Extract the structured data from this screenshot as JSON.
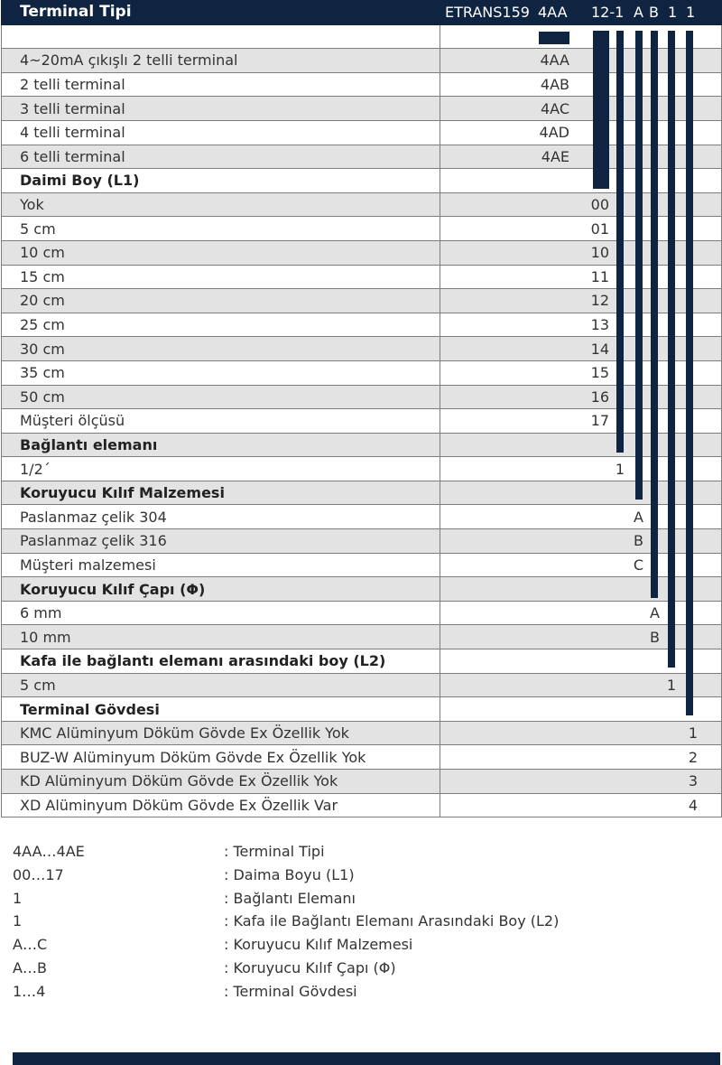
{
  "header": {
    "title": "Terminal Tipi",
    "model": "ETRANS159",
    "codes": [
      "4AA",
      "12-1",
      "A",
      "B",
      "1",
      "1"
    ]
  },
  "rows": [
    {
      "label": "",
      "value": "",
      "kind": "blank"
    },
    {
      "label": "4~20mA çıkışlı 2 telli terminal",
      "value": "4AA",
      "kind": "item"
    },
    {
      "label": "2 telli terminal",
      "value": "4AB",
      "kind": "item"
    },
    {
      "label": "3 telli terminal",
      "value": "4AC",
      "kind": "item"
    },
    {
      "label": "4 telli terminal",
      "value": "4AD",
      "kind": "item"
    },
    {
      "label": "6 telli terminal",
      "value": "4AE",
      "kind": "item"
    },
    {
      "label": "Daimi Boy (L1)",
      "value": "",
      "kind": "section"
    },
    {
      "label": "Yok",
      "value": "00",
      "kind": "item"
    },
    {
      "label": "5 cm",
      "value": "01",
      "kind": "item"
    },
    {
      "label": "10 cm",
      "value": "10",
      "kind": "item"
    },
    {
      "label": "15 cm",
      "value": "11",
      "kind": "item"
    },
    {
      "label": "20 cm",
      "value": "12",
      "kind": "item"
    },
    {
      "label": "25 cm",
      "value": "13",
      "kind": "item"
    },
    {
      "label": "30 cm",
      "value": "14",
      "kind": "item"
    },
    {
      "label": "35 cm",
      "value": "15",
      "kind": "item"
    },
    {
      "label": "50 cm",
      "value": "16",
      "kind": "item"
    },
    {
      "label": "Müşteri ölçüsü",
      "value": "17",
      "kind": "item"
    },
    {
      "label": "Bağlantı  elemanı",
      "value": "",
      "kind": "section"
    },
    {
      "label": "1/2´",
      "value": "1",
      "kind": "item"
    },
    {
      "label": "Koruyucu  Kılıf  Malzemesi",
      "value": "",
      "kind": "section"
    },
    {
      "label": "Paslanmaz çelik 304",
      "value": "A",
      "kind": "item"
    },
    {
      "label": "Paslanmaz çelik 316",
      "value": "B",
      "kind": "item"
    },
    {
      "label": "Müşteri malzemesi",
      "value": "C",
      "kind": "item"
    },
    {
      "label": "Koruyucu  Kılıf  Çapı  (Φ)",
      "value": "",
      "kind": "section"
    },
    {
      "label": "6 mm",
      "value": "A",
      "kind": "item"
    },
    {
      "label": "10 mm",
      "value": "B",
      "kind": "item"
    },
    {
      "label": "Kafa ile bağlantı elemanı arasındaki  boy (L2)",
      "value": "",
      "kind": "section"
    },
    {
      "label": "5 cm",
      "value": "1",
      "kind": "item"
    },
    {
      "label": "Terminal  Gövdesi",
      "value": "",
      "kind": "section"
    },
    {
      "label": "KMC  Alüminyum Döküm Gövde Ex Özellik Yok",
      "value": "1",
      "kind": "item"
    },
    {
      "label": "BUZ-W  Alüminyum Döküm Gövde Ex Özellik Yok",
      "value": "2",
      "kind": "item"
    },
    {
      "label": "KD  Alüminyum Döküm Gövde Ex Özellik Yok",
      "value": "3",
      "kind": "item"
    },
    {
      "label": "XD  Alüminyum Döküm Gövde Ex Özellik Var",
      "value": "4",
      "kind": "item"
    }
  ],
  "legend": [
    {
      "code": "4AA…4AE",
      "desc": ": Terminal Tipi"
    },
    {
      "code": "00…17",
      "desc": ": Daima Boyu (L1)"
    },
    {
      "code": "1",
      "desc": ": Bağlantı Elemanı"
    },
    {
      "code": "1",
      "desc": ": Kafa ile Bağlantı Elemanı Arasındaki  Boy (L2)"
    },
    {
      "code": "A…C",
      "desc": ": Koruyucu  Kılıf  Malzemesi"
    },
    {
      "code": "A…B",
      "desc": ": Koruyucu  Kılıf  Çapı  (Φ)"
    },
    {
      "code": "1…4",
      "desc": ": Terminal Gövdesi"
    }
  ],
  "colors": {
    "accent": "#0e2441",
    "row_gray": "#e3e3e3",
    "border": "#7d7d7d"
  }
}
